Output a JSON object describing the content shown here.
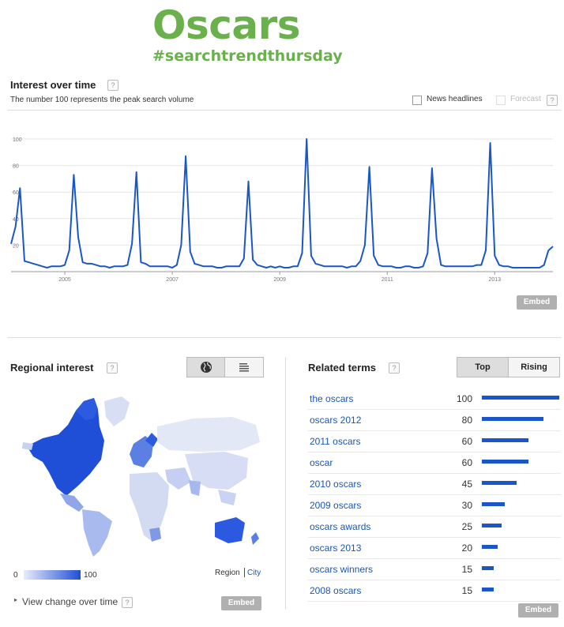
{
  "header": {
    "title": "Oscars",
    "hashtag": "#searchtrendthursday"
  },
  "interest": {
    "title": "Interest over time",
    "subtitle": "The number 100 represents the peak search volume",
    "news_label": "News headlines",
    "forecast_label": "Forecast",
    "embed_label": "Embed"
  },
  "chart_data": [
    {
      "type": "line",
      "title": "Interest over time",
      "xlabel": "",
      "ylabel": "",
      "ylim": [
        0,
        100
      ],
      "yticks": [
        20,
        40,
        60,
        80,
        100
      ],
      "xticks": [
        "2005",
        "2007",
        "2009",
        "2011",
        "2013"
      ],
      "grid": true,
      "series": [
        {
          "values": [
            21,
            34,
            63,
            8,
            7,
            6,
            5,
            4,
            3,
            4,
            4,
            4,
            5,
            16,
            73,
            26,
            7,
            6,
            6,
            5,
            4,
            4,
            3,
            4,
            4,
            4,
            5,
            21,
            75,
            7,
            6,
            4,
            4,
            4,
            4,
            4,
            3,
            5,
            20,
            87,
            15,
            6,
            5,
            4,
            4,
            4,
            3,
            3,
            4,
            4,
            4,
            4,
            10,
            68,
            9,
            5,
            4,
            3,
            4,
            3,
            4,
            3,
            3,
            4,
            4,
            14,
            100,
            12,
            6,
            5,
            4,
            4,
            4,
            4,
            4,
            3,
            4,
            4,
            8,
            20,
            79,
            12,
            5,
            4,
            4,
            4,
            3,
            3,
            4,
            4,
            3,
            3,
            4,
            14,
            78,
            25,
            5,
            4,
            4,
            4,
            4,
            4,
            4,
            4,
            5,
            5,
            16,
            97,
            12,
            5,
            4,
            4,
            3,
            3,
            3,
            3,
            3,
            3,
            3,
            5,
            16,
            19
          ]
        }
      ]
    },
    {
      "type": "heatmap",
      "title": "Regional interest",
      "legend_min": "0",
      "legend_max": "100"
    },
    {
      "type": "bar",
      "title": "Related terms",
      "categories": [
        "the oscars",
        "oscars 2012",
        "2011 oscars",
        "oscar",
        "2010 oscars",
        "2009 oscars",
        "oscars awards",
        "oscars 2013",
        "oscars winners",
        "2008 oscars"
      ],
      "values": [
        100,
        80,
        60,
        60,
        45,
        30,
        25,
        20,
        15,
        15
      ]
    }
  ],
  "regional": {
    "title": "Regional interest",
    "legend_min": "0",
    "legend_max": "100",
    "region_label": "Region",
    "city_label": "City",
    "view_change_label": "View change over time",
    "embed_label": "Embed"
  },
  "related": {
    "title": "Related terms",
    "tab_top": "Top",
    "tab_rising": "Rising",
    "embed_label": "Embed"
  },
  "colors": {
    "brand_green": "#6ab04c",
    "line_blue": "#1a56c8",
    "link_blue": "#1a56b8"
  }
}
